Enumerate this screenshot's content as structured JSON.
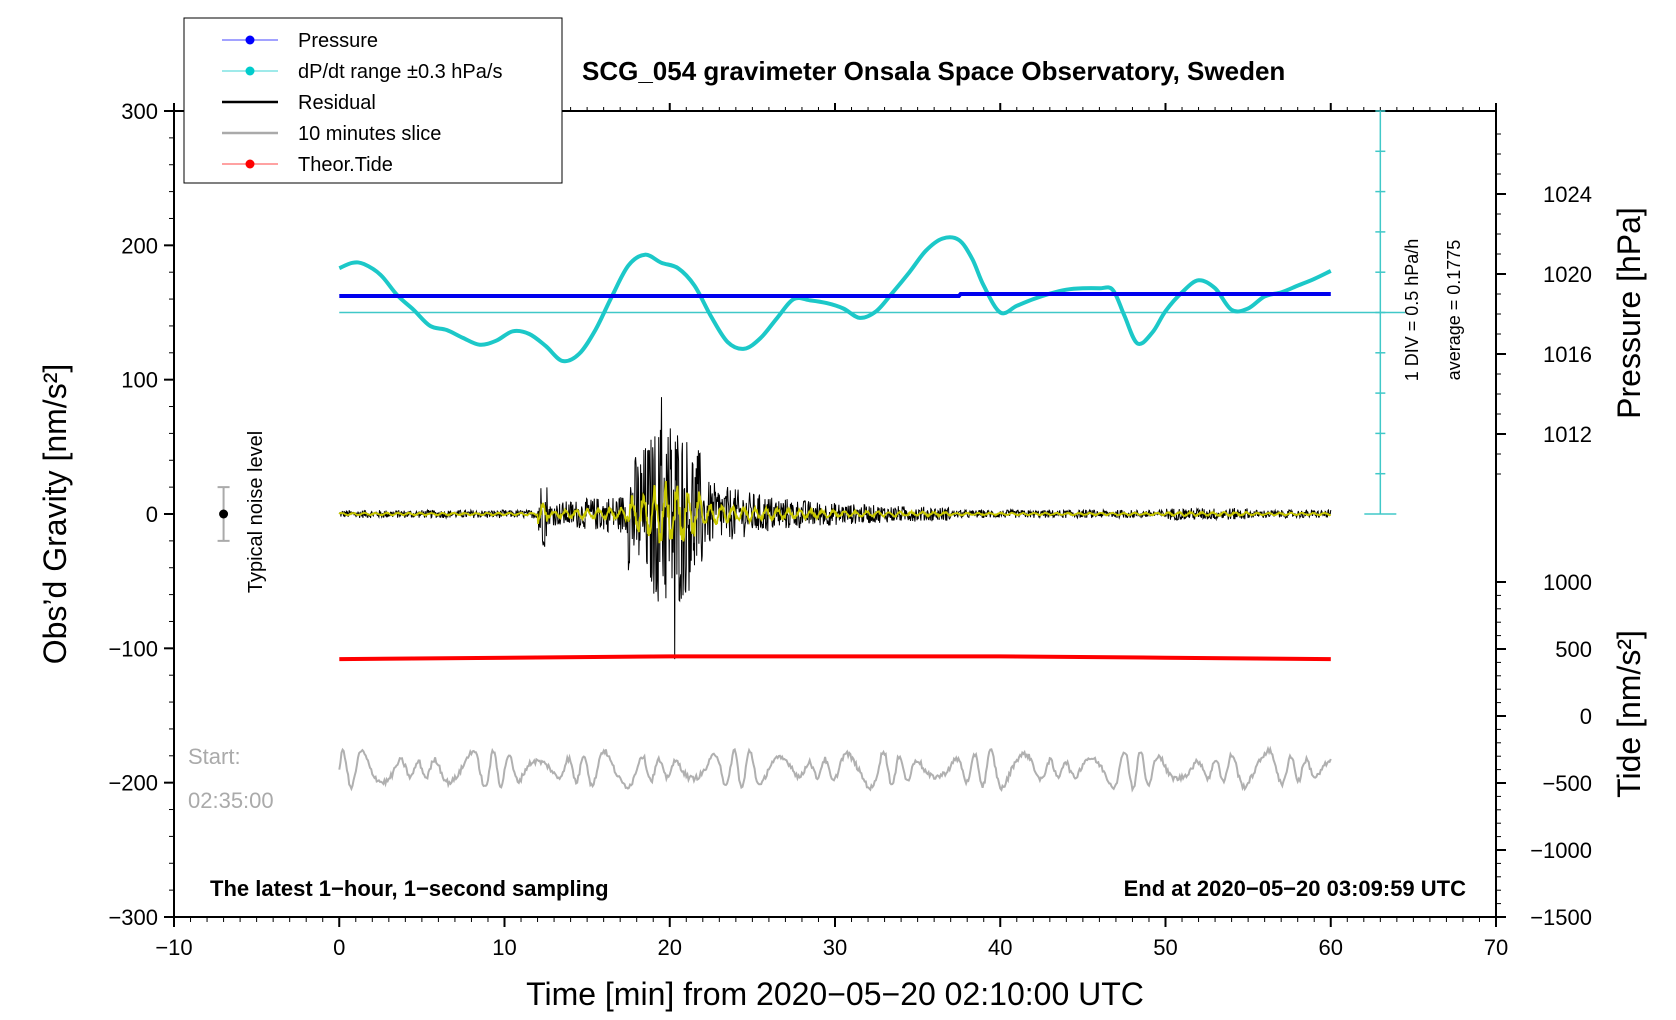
{
  "chart_data": {
    "type": "line",
    "title": "SCG_054 gravimeter Onsala Space Observatory, Sweden",
    "xlabel": "Time [min] from 2020−05−20 02:10:00 UTC",
    "ylabel_left": "Obs’d Gravity [nm/s²]",
    "ylabel_right_pressure": "Pressure [hPa]",
    "ylabel_right_tide": "Tide [nm/s²]",
    "xlim": [
      -10,
      70
    ],
    "ylim": [
      -300,
      300
    ],
    "x_ticks": [
      "−10",
      "0",
      "10",
      "20",
      "30",
      "40",
      "50",
      "60",
      "70"
    ],
    "y_ticks": [
      "300",
      "200",
      "100",
      "0",
      "−100",
      "−200",
      "−300"
    ],
    "pressure_axis": {
      "range": [
        1008,
        1028
      ],
      "ticks": [
        "1024",
        "1020",
        "1016",
        "1012"
      ]
    },
    "tide_axis": {
      "range": [
        -1500,
        1000
      ],
      "ticks": [
        "1000",
        "500",
        "0",
        "−500",
        "−1000",
        "−1500"
      ]
    },
    "legend": [
      {
        "label": "Pressure",
        "color": "#0000ff"
      },
      {
        "label": "dP/dt range ±0.3 hPa/s",
        "color": "#00cccc"
      },
      {
        "label": "Residual",
        "color": "#000000"
      },
      {
        "label": "10 minutes slice",
        "color": "#aaaaaa"
      },
      {
        "label": "Theor.Tide",
        "color": "#ff0000"
      }
    ],
    "series": {
      "pressure": {
        "name": "Pressure",
        "unit": "hPa",
        "x": [
          0,
          37.5,
          37.6,
          60
        ],
        "values": [
          1018.9,
          1018.9,
          1019.0,
          1019.0
        ]
      },
      "dpdt": {
        "name": "dP/dt range ±0.3 hPa/s",
        "unit": "nm/s2 (plotted)",
        "x": [
          0,
          0.8,
          1.5,
          2.5,
          3.5,
          4.5,
          5.5,
          6.5,
          7.5,
          8.5,
          9.5,
          10.5,
          11.5,
          12.5,
          13.5,
          14.5,
          15.5,
          16.5,
          17.5,
          18.5,
          19.5,
          20.5,
          21.5,
          22.5,
          23.5,
          24.5,
          25.5,
          26.5,
          27.5,
          28.5,
          29.5,
          30.5,
          31.5,
          32.5,
          33.5,
          34.5,
          35.5,
          36.5,
          37.5,
          38.3,
          39,
          40,
          41,
          42,
          43,
          44,
          45,
          46,
          46.8,
          47.5,
          48.3,
          49.2,
          50,
          51,
          52,
          53,
          54,
          55,
          56,
          57,
          58,
          59,
          60
        ],
        "values": [
          183,
          187,
          186,
          178,
          163,
          152,
          140,
          137,
          131,
          126,
          129,
          136,
          134,
          125,
          114,
          119,
          137,
          162,
          185,
          193,
          187,
          183,
          170,
          147,
          128,
          123,
          131,
          146,
          160,
          159,
          157,
          153,
          146,
          151,
          165,
          180,
          196,
          205,
          204,
          190,
          170,
          150,
          155,
          160,
          164,
          167,
          168,
          168,
          167,
          148,
          127,
          135,
          151,
          165,
          174,
          168,
          152,
          153,
          162,
          165,
          170,
          175,
          181
        ]
      },
      "dpdt_average_line": {
        "name": "average",
        "value": 150
      },
      "theor_tide": {
        "name": "Theor.Tide",
        "x": [
          0,
          20,
          30,
          40,
          50,
          60
        ],
        "values": [
          -108,
          -106,
          -106,
          -106,
          -107,
          -108
        ]
      },
      "residual": {
        "name": "Residual",
        "x_range": [
          0,
          60
        ],
        "baseline": 0,
        "background_amplitude": 3,
        "event_onset_min": 12,
        "event_peak_min": 20,
        "event_end_min": 37,
        "max": 87,
        "min": -108
      },
      "ten_minute_slice": {
        "name": "10 minutes slice",
        "x_range": [
          0,
          60
        ],
        "center": -190,
        "amplitude": 14
      }
    },
    "annotations": {
      "noise_label": "Typical noise level",
      "noise_range": [
        -20,
        20
      ],
      "start_label": "Start:",
      "start_time": "02:35:00",
      "bottom_left_note": "The latest 1−hour, 1−second sampling",
      "bottom_right_note": "End at 2020−05−20 03:09:59 UTC",
      "scale_text": "1 DIV = 0.5 hPa/h",
      "average_text": "average = 0.1775"
    }
  }
}
